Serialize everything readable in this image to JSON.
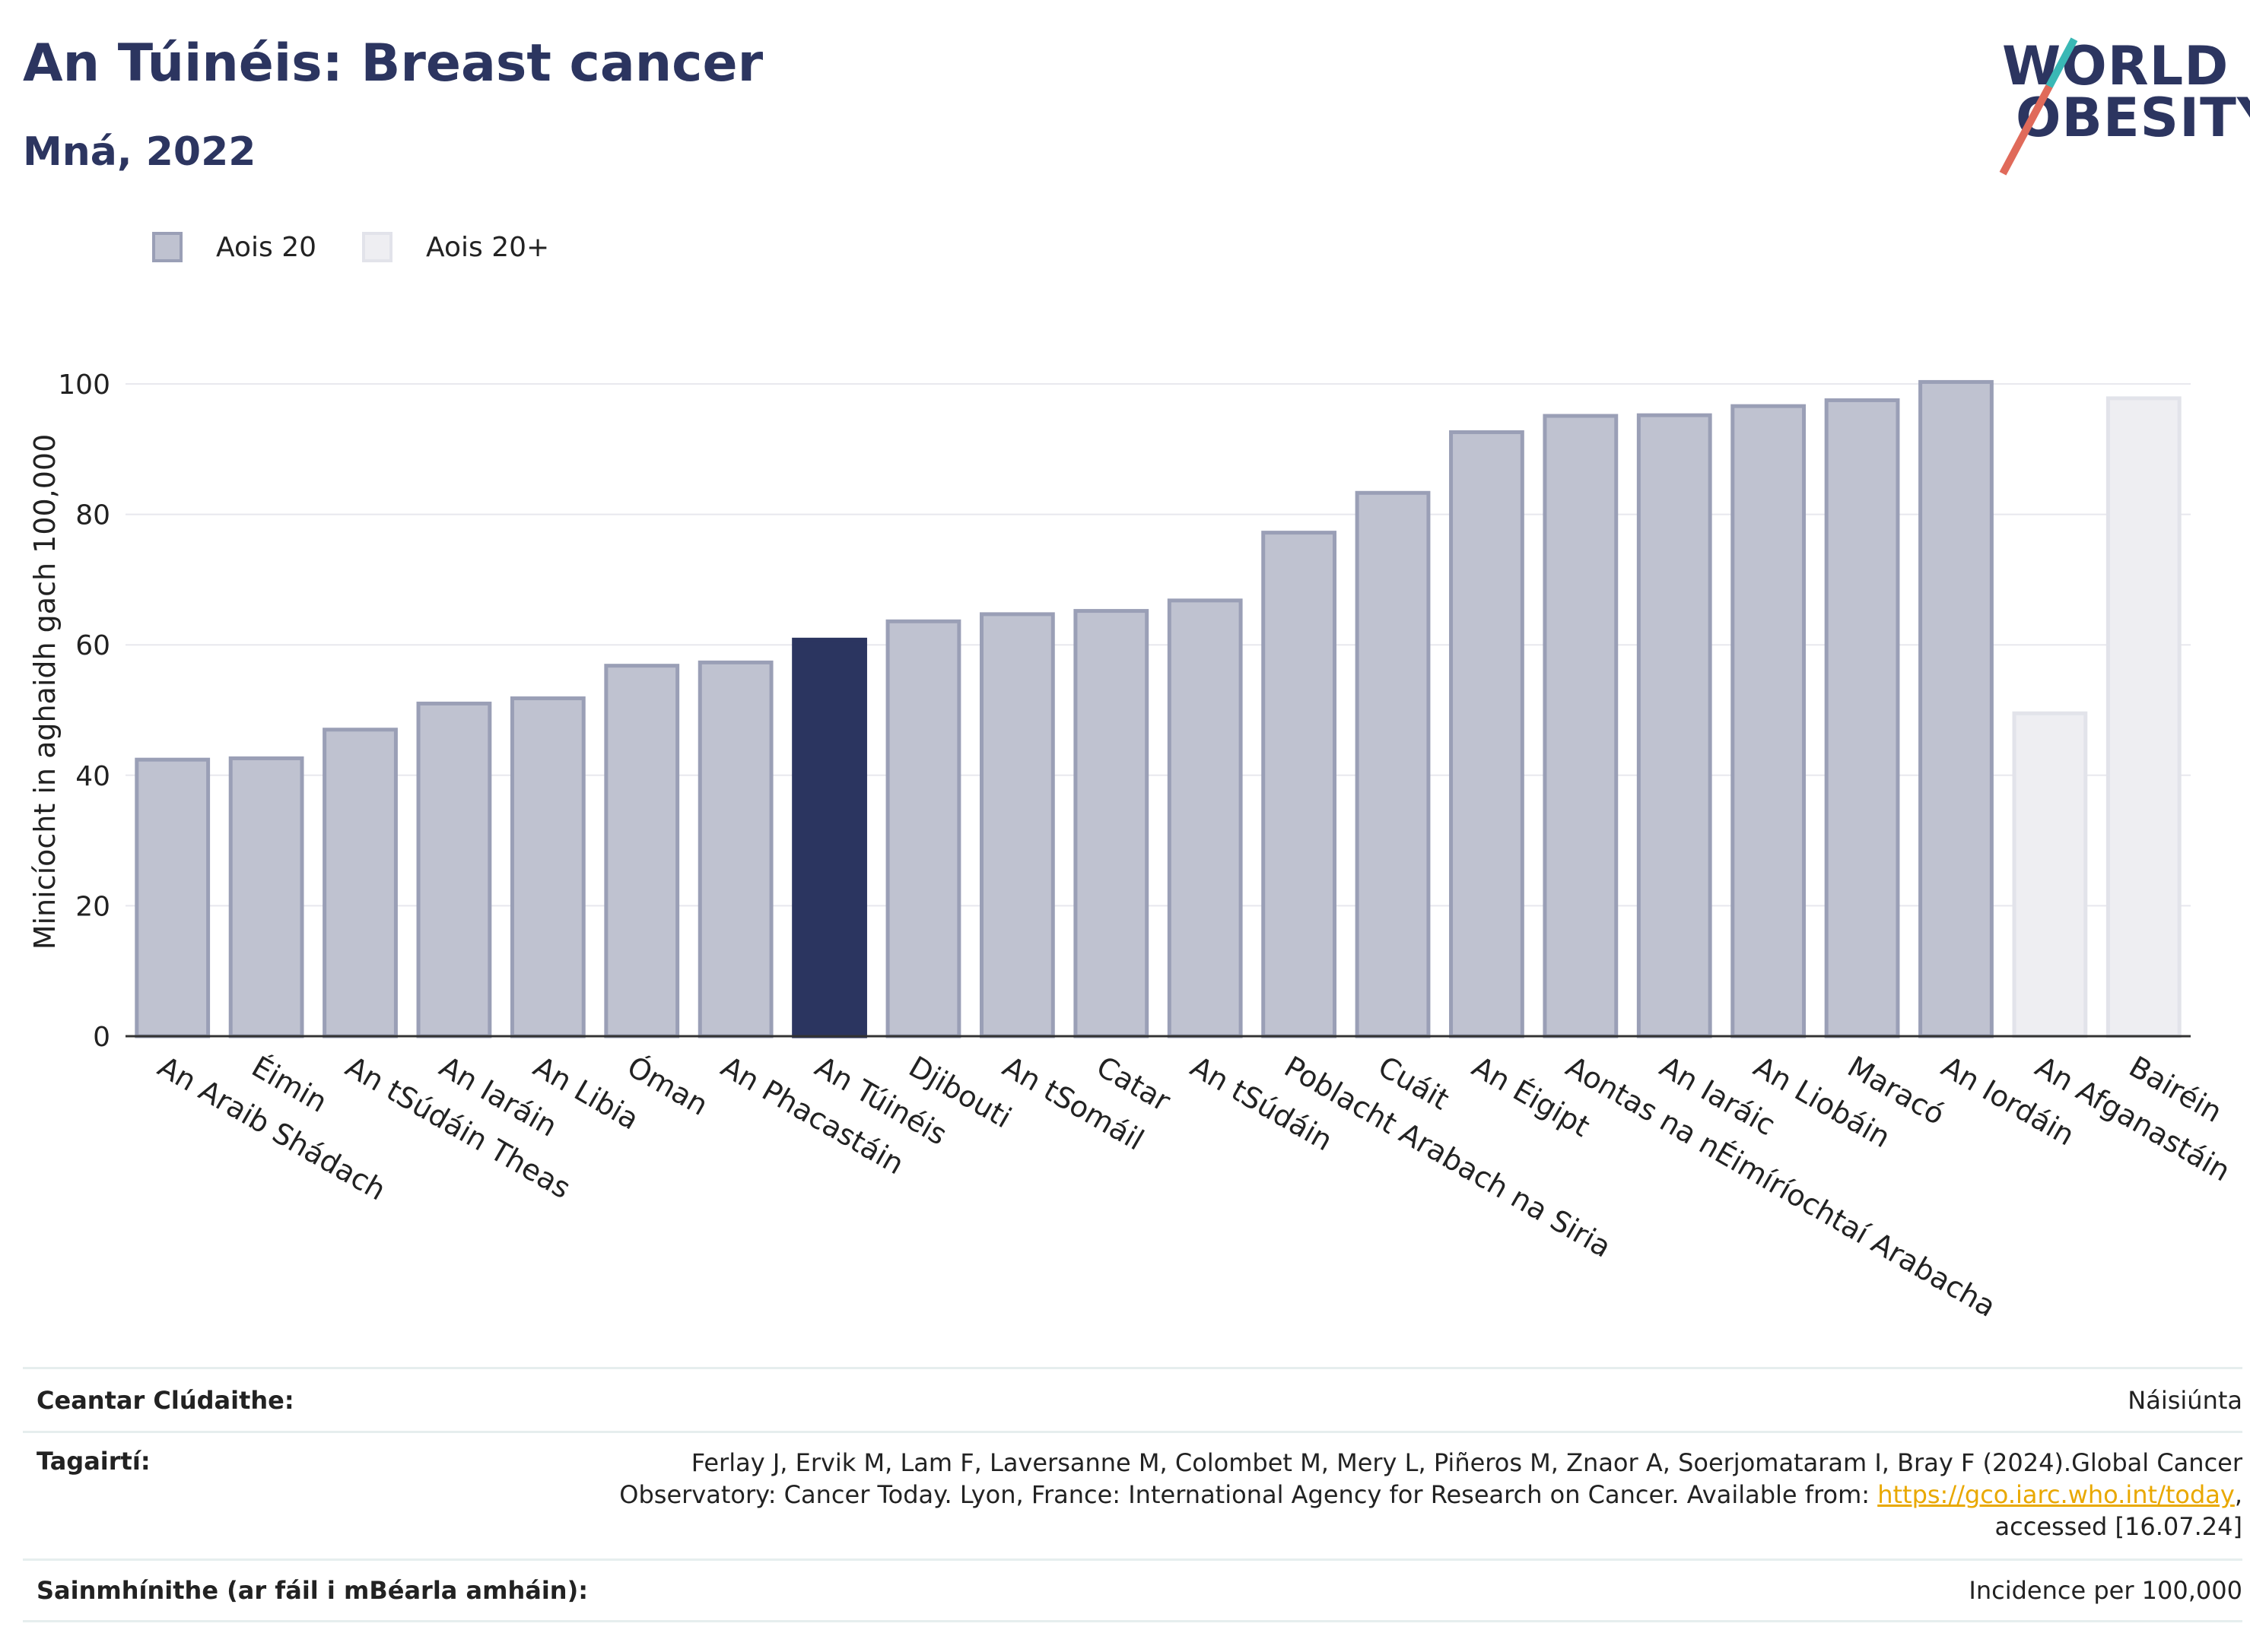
{
  "header": {
    "title": "An Túinéis: Breast cancer",
    "subtitle": "Mná, 2022",
    "logo_line1": "WORLD",
    "logo_line2": "OBESITY"
  },
  "legend": [
    {
      "label": "Aois 20",
      "fill": "#bfc2d0",
      "stroke": "#9a9fb6"
    },
    {
      "label": "Aois 20+",
      "fill": "#eeeef2",
      "stroke": "#e2e3ea"
    }
  ],
  "colors": {
    "highlight": "#2b3560",
    "age20": "#bfc2d0",
    "age20_stroke": "#9a9fb6",
    "age20plus": "#eeeef2",
    "age20plus_stroke": "#e2e3ea",
    "grid": "#e8e8ee",
    "axis": "#333333"
  },
  "chart_data": {
    "type": "bar",
    "title": "An Túinéis: Breast cancer",
    "subtitle": "Mná, 2022",
    "ylabel": "Minicíocht in aghaidh gach 100,000",
    "xlabel": "",
    "ylim": [
      0,
      106
    ],
    "yticks": [
      0,
      20,
      40,
      60,
      80,
      100
    ],
    "grid": true,
    "legend_position": "top-left",
    "categories": [
      "An Araib Shádach",
      "Éimin",
      "An tSúdáin Theas",
      "An Iaráin",
      "An Libia",
      "Óman",
      "An Phacastáin",
      "An Túinéis",
      "Djibouti",
      "An tSomáil",
      "Catar",
      "An tSúdáin",
      "Poblacht Arabach na Siria",
      "Cuáit",
      "An Éigipt",
      "Aontas na nÉimíríochtaí Arabacha",
      "An Iaráic",
      "An Liobáin",
      "Maracó",
      "An Iordáin",
      "An Afganastáin",
      "Bairéin"
    ],
    "values": [
      42.4,
      42.6,
      47.0,
      51.0,
      51.8,
      56.8,
      57.3,
      60.8,
      63.6,
      64.7,
      65.2,
      66.8,
      77.2,
      83.3,
      92.6,
      95.1,
      95.2,
      96.6,
      97.5,
      100.3,
      49.5,
      97.8
    ],
    "series_group": [
      "Aois 20",
      "Aois 20",
      "Aois 20",
      "Aois 20",
      "Aois 20",
      "Aois 20",
      "Aois 20",
      "Aois 20",
      "Aois 20",
      "Aois 20",
      "Aois 20",
      "Aois 20",
      "Aois 20",
      "Aois 20",
      "Aois 20",
      "Aois 20",
      "Aois 20",
      "Aois 20",
      "Aois 20",
      "Aois 20",
      "Aois 20+",
      "Aois 20+"
    ],
    "highlight": "An Túinéis"
  },
  "footer": {
    "coverage_label": "Ceantar Clúdaithe:",
    "coverage_value": "Náisiúnta",
    "refs_label": "Tagairtí:",
    "refs_line1": "Ferlay J, Ervik M, Lam F, Laversanne M, Colombet M, Mery L, Piñeros M, Znaor A, Soerjomataram I, Bray F (2024).Global Cancer",
    "refs_line2": "Observatory: Cancer Today. Lyon, France: International Agency for Research on Cancer. Available from: ",
    "refs_link": "https://gco.iarc.who.int/today",
    "refs_line2_end": ",",
    "refs_line3": "accessed [16.07.24]",
    "defs_label": "Sainmhínithe (ar fáil i mBéarla amháin):",
    "defs_value": "Incidence per 100,000"
  }
}
